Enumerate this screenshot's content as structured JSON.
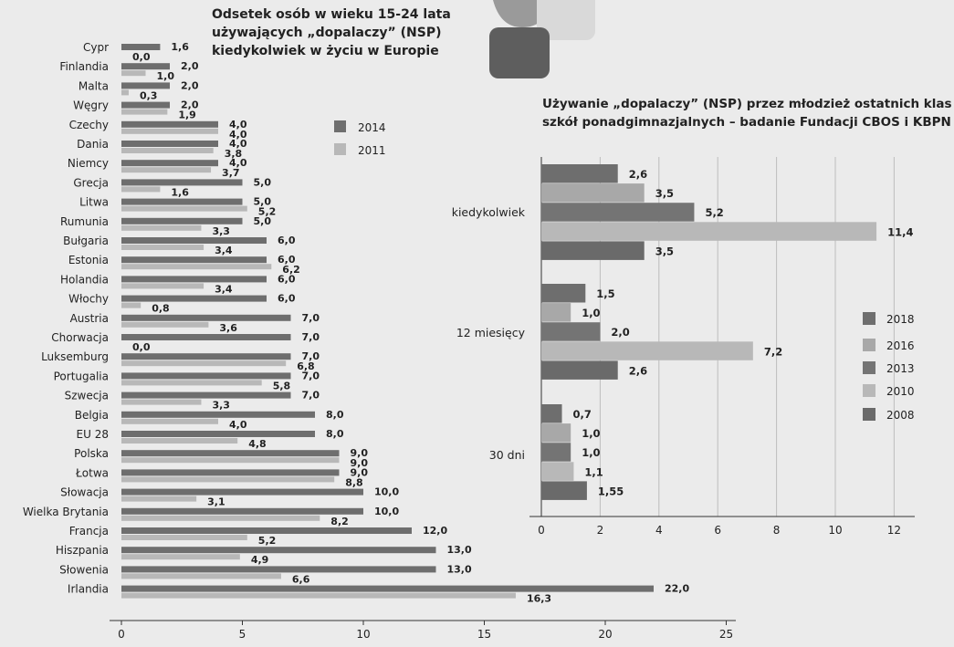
{
  "chart_data": [
    {
      "type": "bar",
      "orientation": "horizontal",
      "title_lines": [
        "Odsetek osób w wieku 15-24 lata",
        "używających „dopalaczy” (NSP)",
        "kiedykolwiek w życiu w Europie"
      ],
      "categories": [
        "Cypr",
        "Finlandia",
        "Malta",
        "Węgry",
        "Czechy",
        "Dania",
        "Niemcy",
        "Grecja",
        "Litwa",
        "Rumunia",
        "Bułgaria",
        "Estonia",
        "Holandia",
        "Włochy",
        "Austria",
        "Chorwacja",
        "Luksemburg",
        "Portugalia",
        "Szwecja",
        "Belgia",
        "EU 28",
        "Polska",
        "Łotwa",
        "Słowacja",
        "Wielka Brytania",
        "Francja",
        "Hiszpania",
        "Słowenia",
        "Irlandia"
      ],
      "series": [
        {
          "name": "2014",
          "color": "#6e6e6e",
          "values": [
            1.6,
            2.0,
            2.0,
            2.0,
            4.0,
            4.0,
            4.0,
            5.0,
            5.0,
            5.0,
            6.0,
            6.0,
            6.0,
            6.0,
            7.0,
            7.0,
            7.0,
            7.0,
            7.0,
            8.0,
            8.0,
            9.0,
            9.0,
            10.0,
            10.0,
            12.0,
            13.0,
            13.0,
            22.0
          ],
          "labels": [
            "1,6",
            "2,0",
            "2,0",
            "2,0",
            "4,0",
            "4,0",
            "4,0",
            "5,0",
            "5,0",
            "5,0",
            "6,0",
            "6,0",
            "6,0",
            "6,0",
            "7,0",
            "7,0",
            "7,0",
            "7,0",
            "7,0",
            "8,0",
            "8,0",
            "9,0",
            "9,0",
            "10,0",
            "10,0",
            "12,0",
            "13,0",
            "13,0",
            "22,0"
          ]
        },
        {
          "name": "2011",
          "color": "#b8b8b8",
          "values": [
            0.0,
            1.0,
            0.3,
            1.9,
            4.0,
            3.8,
            3.7,
            1.6,
            5.2,
            3.3,
            3.4,
            6.2,
            3.4,
            0.8,
            3.6,
            0.0,
            6.8,
            5.8,
            3.3,
            4.0,
            4.8,
            9.0,
            8.8,
            3.1,
            8.2,
            5.2,
            4.9,
            6.6,
            16.3
          ],
          "labels": [
            "0,0",
            "1,0",
            "0,3",
            "1,9",
            "4,0",
            "3,8",
            "3,7",
            "1,6",
            "5,2",
            "3,3",
            "3,4",
            "6,2",
            "3,4",
            "0,8",
            "3,6",
            "0,0",
            "6,8",
            "5,8",
            "3,3",
            "4,0",
            "4,8",
            "9,0",
            "8,8",
            "3,1",
            "8,2",
            "5,2",
            "4,9",
            "6,6",
            "16,3"
          ]
        }
      ],
      "xlim": [
        0,
        25
      ],
      "ticks": [
        "0",
        "5",
        "10",
        "15",
        "20",
        "25"
      ],
      "legend": [
        "2014",
        "2011"
      ],
      "legend_position": "right"
    },
    {
      "type": "bar",
      "orientation": "horizontal",
      "title_lines": [
        "Używanie „dopalaczy” (NSP) przez młodzież ostatnich klas",
        "szkół ponadgimnazjalnych – badanie Fundacji CBOS i KBPN (%)"
      ],
      "categories": [
        "kiedykolwiek",
        "12 miesięcy",
        "30 dni"
      ],
      "series": [
        {
          "name": "2018",
          "color": "#6e6e6e",
          "values": [
            2.6,
            1.5,
            0.7
          ],
          "labels": [
            "2,6",
            "1,5",
            "0,7"
          ]
        },
        {
          "name": "2016",
          "color": "#a8a8a8",
          "values": [
            3.5,
            1.0,
            1.0
          ],
          "labels": [
            "3,5",
            "1,0",
            "1,0"
          ]
        },
        {
          "name": "2013",
          "color": "#747474",
          "values": [
            5.2,
            2.0,
            1.0
          ],
          "labels": [
            "5,2",
            "2,0",
            "1,0"
          ]
        },
        {
          "name": "2010",
          "color": "#b8b8b8",
          "values": [
            11.4,
            7.2,
            1.1
          ],
          "labels": [
            "11,4",
            "7,2",
            "1,1"
          ]
        },
        {
          "name": "2008",
          "color": "#6a6a6a",
          "values": [
            3.5,
            2.6,
            1.55
          ],
          "labels": [
            "3,5",
            "2,6",
            "1,55"
          ]
        }
      ],
      "xlim": [
        0,
        12
      ],
      "ticks": [
        "0",
        "2",
        "4",
        "6",
        "8",
        "10",
        "12"
      ],
      "legend": [
        "2018",
        "2016",
        "2013",
        "2010",
        "2008"
      ],
      "legend_position": "right",
      "grid": true
    }
  ]
}
